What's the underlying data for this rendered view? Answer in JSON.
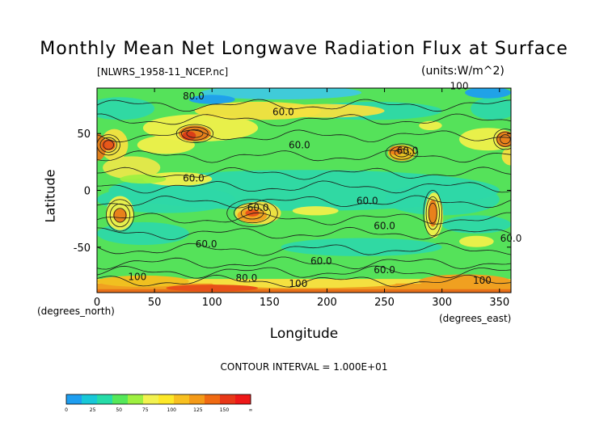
{
  "chart_data": {
    "type": "heatmap",
    "title": "Monthly Mean Net Longwave Radiation Flux at Surface",
    "subtitle": "[NLWRS_1958-11_NCEP.nc]",
    "units": "(units:W/m^2)",
    "xlabel": "Longitude",
    "ylabel": "Latitude",
    "x_unit_label": "(degrees_east)",
    "y_unit_label": "(degrees_north)",
    "xlim": [
      0,
      360
    ],
    "ylim": [
      -90,
      90
    ],
    "x_ticks": [
      0,
      50,
      100,
      150,
      200,
      250,
      300,
      350
    ],
    "y_ticks": [
      50,
      0,
      -50
    ],
    "contour_interval": "CONTOUR INTERVAL = 1.000E+01",
    "contour_labels": [
      {
        "text": "60.0",
        "lon": 84,
        "lat": 8
      },
      {
        "text": "60.0",
        "lon": 140,
        "lat": -18
      },
      {
        "text": "60.0",
        "lon": 95,
        "lat": -50
      },
      {
        "text": "60.0",
        "lon": 235,
        "lat": -12
      },
      {
        "text": "60.0",
        "lon": 360,
        "lat": -45
      },
      {
        "text": "60.0",
        "lon": 250,
        "lat": -34
      },
      {
        "text": "60.0",
        "lon": 250,
        "lat": -73
      },
      {
        "text": "60.0",
        "lon": 270,
        "lat": 32
      },
      {
        "text": "60.0",
        "lon": 176,
        "lat": 37
      },
      {
        "text": "60.0",
        "lon": 195,
        "lat": -65
      },
      {
        "text": "60.0",
        "lon": 162,
        "lat": 66
      },
      {
        "text": "80.0",
        "lon": 84,
        "lat": 80
      },
      {
        "text": "100",
        "lon": 35,
        "lat": -79
      },
      {
        "text": "100",
        "lon": 175,
        "lat": -85
      },
      {
        "text": "100",
        "lon": 335,
        "lat": -82
      },
      {
        "text": "100",
        "lon": 315,
        "lat": 89
      },
      {
        "text": "80.0",
        "lon": 130,
        "lat": -80
      }
    ],
    "colorbar": {
      "labels": [
        "0",
        "25",
        "50",
        "75",
        "100",
        "125",
        "150",
        "∞"
      ],
      "colors": [
        "#1e9ef0",
        "#18c8d8",
        "#26dca8",
        "#55e85a",
        "#9ef040",
        "#f2f250",
        "#fde828",
        "#f8c020",
        "#f49a18",
        "#f06a12",
        "#e83818",
        "#ee1818"
      ]
    },
    "palette": {
      "land_low": "#2ed8a8",
      "mid": "#7ee850",
      "high": "#f4e040",
      "higher": "#f0a020",
      "top": "#e85018"
    }
  }
}
